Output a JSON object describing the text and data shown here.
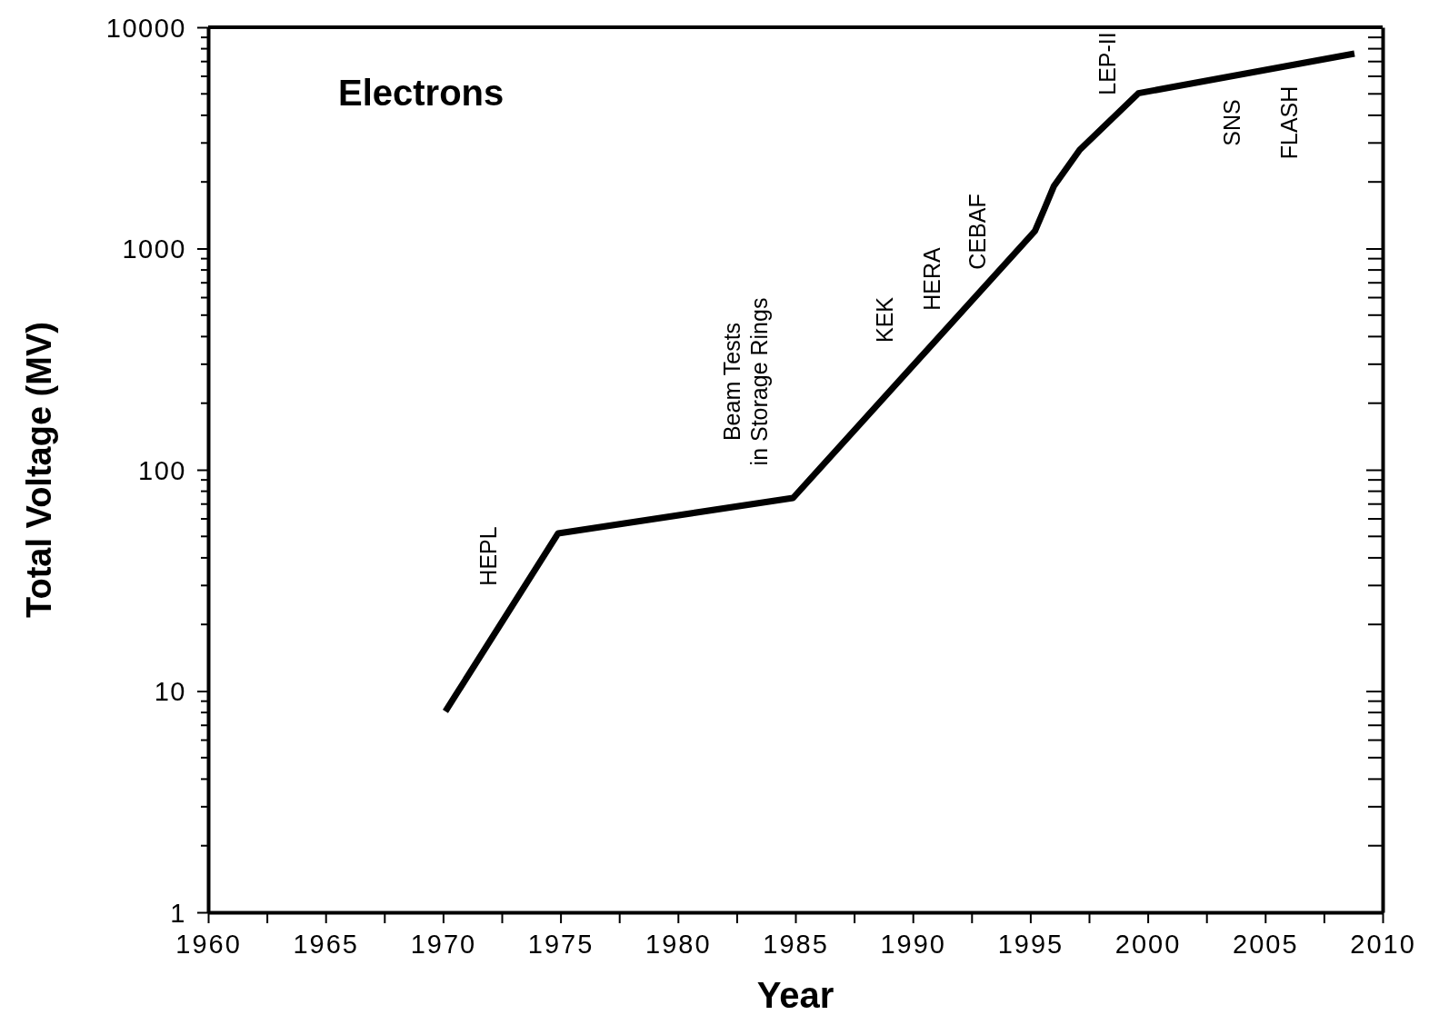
{
  "chart_data": {
    "type": "line",
    "title": "Electrons",
    "xlabel": "Year",
    "ylabel": "Total Voltage (MV)",
    "x": [
      1970.1,
      1974.9,
      1984.9,
      1995.2,
      1995.6,
      1996.0,
      1997.1,
      1999.6,
      2008.8
    ],
    "series": [
      {
        "color": "#000000",
        "values": [
          8.1,
          51.6,
          74.6,
          1200,
          1510,
          1910,
          2790,
          5030,
          7600
        ]
      }
    ],
    "log": "y",
    "xlim": [
      1960,
      2010
    ],
    "ylim": [
      1,
      10000
    ],
    "xticks": [
      1960,
      {
        "value": 1962.5,
        "label": null
      },
      1965,
      {
        "value": 1967.5,
        "label": null
      },
      1970,
      {
        "value": 1972.5,
        "label": null
      },
      1975,
      {
        "value": 1977.5,
        "label": null
      },
      1980,
      {
        "value": 1982.5,
        "label": null
      },
      1985,
      {
        "value": 1987.5,
        "label": null
      },
      1990,
      {
        "value": 1992.5,
        "label": null
      },
      1995,
      {
        "value": 1997.5,
        "label": null
      },
      2000,
      {
        "value": 2002.5,
        "label": null
      },
      2005,
      {
        "value": 2007.5,
        "label": null
      },
      2010
    ],
    "yticks": [
      1,
      10,
      100,
      1000,
      10000
    ],
    "grid": false,
    "marker": "none",
    "line_style": "solid",
    "annotations": [
      "HEPL",
      "Beam Tests\nin Storage Rings",
      "KEK",
      "HERA",
      "CEBAF",
      "LEP-II",
      "SNS",
      "FLASH"
    ]
  }
}
